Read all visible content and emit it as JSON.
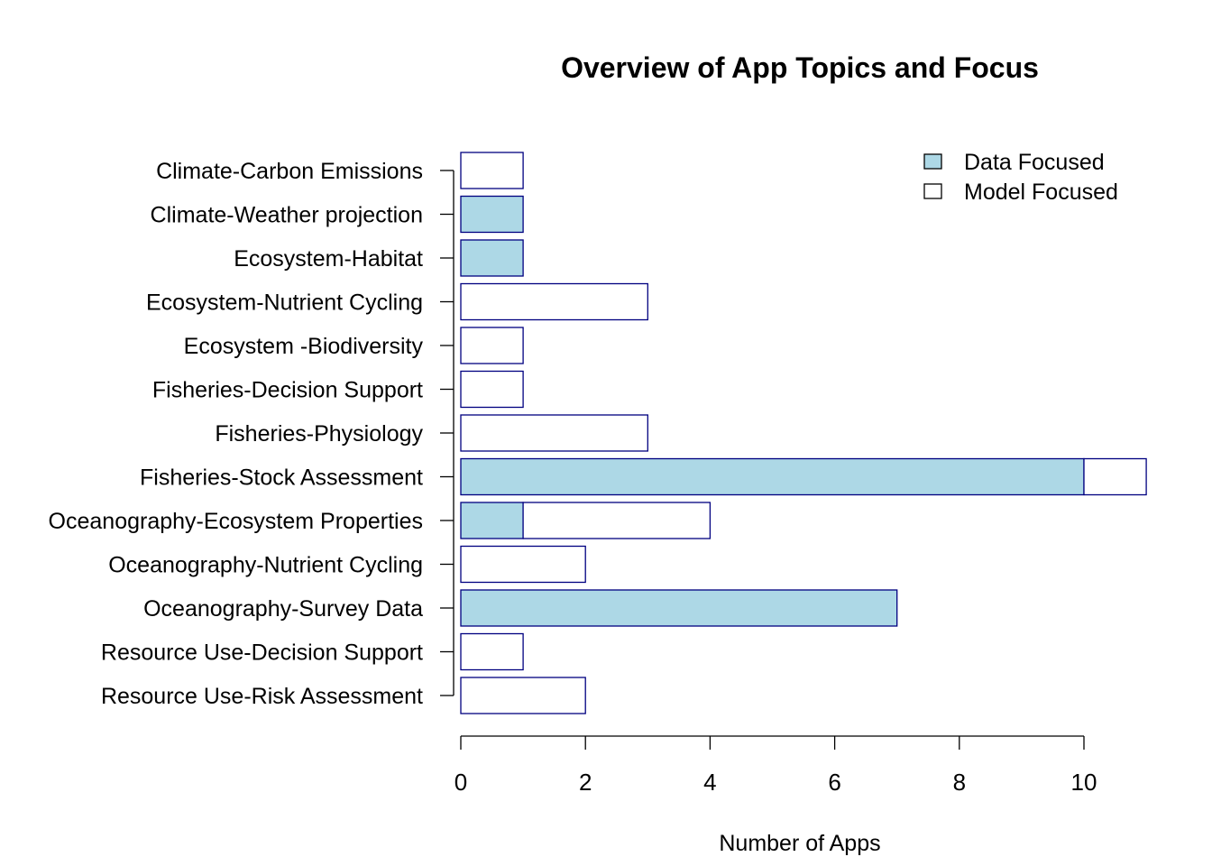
{
  "chart_data": {
    "type": "bar",
    "orientation": "horizontal",
    "stacked": true,
    "title": "Overview of App Topics and Focus",
    "xlabel": "Number of Apps",
    "ylabel": "",
    "xlim": [
      0,
      11
    ],
    "xticks": [
      "0",
      "2",
      "4",
      "6",
      "8",
      "10"
    ],
    "categories": [
      "Climate-Carbon Emissions",
      "Climate-Weather projection",
      "Ecosystem-Habitat",
      "Ecosystem-Nutrient Cycling",
      "Ecosystem -Biodiversity",
      "Fisheries-Decision Support",
      "Fisheries-Physiology",
      "Fisheries-Stock Assessment",
      "Oceanography-Ecosystem Properties",
      "Oceanography-Nutrient Cycling",
      "Oceanography-Survey Data",
      "Resource Use-Decision Support",
      "Resource Use-Risk Assessment"
    ],
    "series": [
      {
        "name": "Data Focused",
        "color": "#ADD8E6",
        "values": [
          0,
          1,
          1,
          0,
          0,
          0,
          0,
          10,
          1,
          0,
          7,
          0,
          0
        ]
      },
      {
        "name": "Model Focused",
        "color": "#FFFFFF",
        "values": [
          1,
          0,
          0,
          3,
          1,
          1,
          3,
          1,
          3,
          2,
          0,
          1,
          2
        ]
      }
    ],
    "bar_border_color": "#000080",
    "legend_position": "top-right",
    "grid": false
  }
}
